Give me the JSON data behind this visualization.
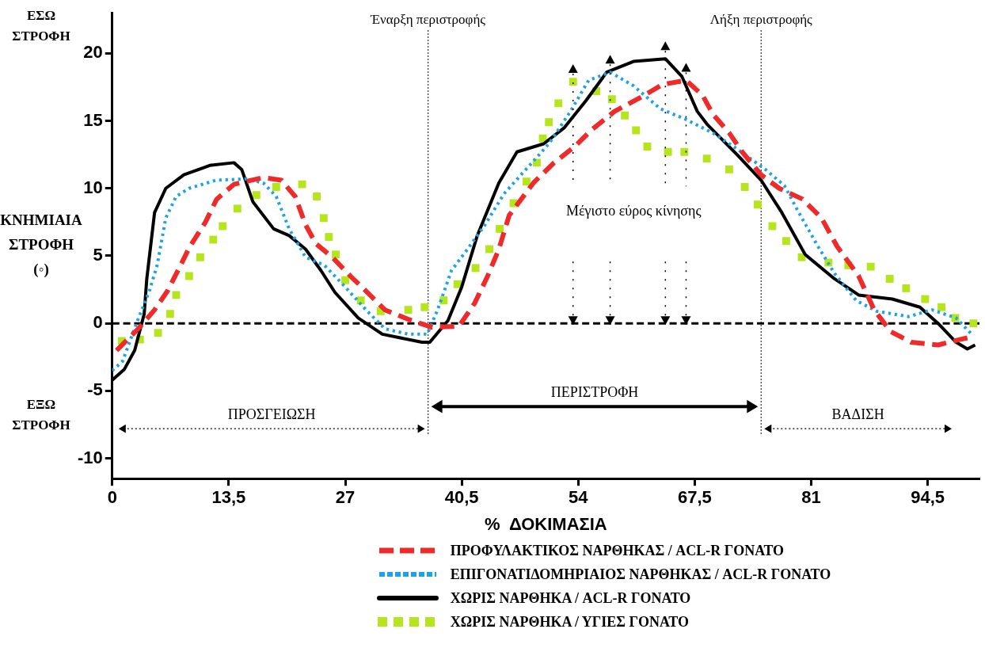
{
  "chart_data": {
    "type": "line",
    "xlabel": "%  ΔΟΚΙΜΑΣΙΑ",
    "ylabel": "ΚΝΗΜΙΑΙΑ ΣΤΡΟΦΗ (◦)",
    "xlim": [
      0,
      100.5
    ],
    "ylim": [
      -11.5,
      23
    ],
    "xticks": [
      0,
      {
        "value": 13.5,
        "label": "13,5"
      },
      27,
      {
        "value": 40.5,
        "label": "40,5"
      },
      54,
      {
        "value": 67.5,
        "label": "67,5"
      },
      81,
      {
        "value": 94.5,
        "label": "94,5"
      }
    ],
    "yticks": [
      -10,
      -5,
      0,
      5,
      10,
      15,
      20
    ],
    "legend": "bottom",
    "series": [
      {
        "name": "ΠΡΟΦΥΛΑΚΤΙΚΟΣ ΝΑΡΘΗΚΑΣ / ACL-R ΓΟΝΑΤΟ",
        "type": "line",
        "line_style": "dashed",
        "color": "#ee2a2a",
        "x": [
          0.5,
          3.0,
          4.9,
          6.4,
          7.6,
          9.0,
          10.8,
          12.1,
          14.1,
          17.5,
          19.6,
          21.2,
          22.4,
          23.6,
          25.5,
          27.6,
          29.4,
          31.6,
          34.3,
          37.1,
          40.2,
          42.0,
          43.5,
          44.8,
          46.0,
          48.8,
          51.2,
          53.6,
          55.5,
          58.2,
          61.4,
          63.8,
          66.5,
          68.4,
          69.6,
          71.5,
          73.0,
          75.2,
          77.3,
          80.0,
          82.2,
          84.0,
          86.5,
          88.3,
          90.2,
          92.6,
          95.7,
          98.2,
          99.6
        ],
        "values": [
          -2.0,
          -0.4,
          1.0,
          2.4,
          3.9,
          5.7,
          7.5,
          9.2,
          10.3,
          10.8,
          10.6,
          9.4,
          7.3,
          5.9,
          4.9,
          3.5,
          2.4,
          1.0,
          0.3,
          -0.3,
          -0.2,
          1.5,
          3.5,
          5.5,
          8.0,
          10.4,
          11.9,
          13.1,
          14.3,
          15.7,
          16.8,
          17.7,
          18.0,
          16.9,
          15.5,
          14.1,
          12.7,
          11.0,
          10.0,
          9.2,
          7.8,
          5.7,
          3.5,
          1.0,
          -0.6,
          -1.4,
          -1.6,
          -1.2,
          -1.0
        ]
      },
      {
        "name": "ΕΠΙΓΟΝΑΤΙΔΟΜΗΡΙΑΙΟΣ ΝΑΡΘΗΚΑΣ / ACL-R ΓΟΝΑΤΟ",
        "type": "line",
        "line_style": "dotted",
        "color": "#1aa3e8",
        "x": [
          0,
          1.2,
          2.8,
          4.3,
          5.2,
          6.2,
          7.4,
          8.9,
          12.0,
          15.6,
          17.5,
          19.0,
          20.5,
          22.4,
          24.6,
          26.7,
          29.4,
          31.6,
          34.3,
          36.5,
          37.7,
          39.3,
          41.4,
          43.2,
          45.4,
          47.8,
          50.6,
          53.1,
          55.2,
          57.7,
          60.4,
          63.5,
          66.5,
          69.6,
          72.0,
          75.7,
          77.9,
          79.4,
          81.6,
          83.7,
          86.2,
          88.6,
          92.3,
          95.0,
          97.8,
          99.6
        ],
        "values": [
          -3.5,
          -2.8,
          0,
          2.4,
          4.3,
          7.8,
          9.4,
          10.0,
          10.6,
          10.7,
          10.4,
          9.4,
          7.0,
          4.9,
          4.3,
          2.9,
          1.0,
          -0.4,
          -0.8,
          -0.8,
          1.0,
          3.9,
          5.7,
          7.3,
          9.6,
          11.3,
          13.3,
          15.7,
          18.0,
          18.6,
          17.6,
          15.9,
          15.1,
          14.1,
          13.1,
          11.4,
          10.2,
          8.4,
          5.9,
          3.7,
          1.7,
          0.9,
          0.5,
          1.0,
          0.4,
          -0.8
        ]
      },
      {
        "name": "ΧΩΡΙΣ ΝΑΡΘΗΚΑ / ACL-R ΓΟΝΑΤΟ",
        "type": "line",
        "line_style": "solid",
        "color": "#000000",
        "x": [
          0,
          1.4,
          2.6,
          3.7,
          4.0,
          4.9,
          6.2,
          8.3,
          11.3,
          14.1,
          15.0,
          16.3,
          18.7,
          20.5,
          22.4,
          24.2,
          25.8,
          28.5,
          31.3,
          35.9,
          36.8,
          38.9,
          40.5,
          42.3,
          44.8,
          46.9,
          50.0,
          52.4,
          54.9,
          57.3,
          60.4,
          64.1,
          66.0,
          67.8,
          69.0,
          72.4,
          75.2,
          77.6,
          80.3,
          83.7,
          86.5,
          90.4,
          93.6,
          95.7,
          97.8,
          99.1,
          100
        ],
        "values": [
          -4.2,
          -3.4,
          -2.0,
          0.7,
          3.3,
          8.2,
          10.0,
          11.0,
          11.7,
          11.9,
          11.4,
          9.0,
          7.0,
          6.5,
          5.5,
          3.9,
          2.3,
          0.4,
          -0.8,
          -1.4,
          -1.4,
          0.2,
          2.7,
          6.5,
          10.4,
          12.7,
          13.3,
          14.5,
          16.5,
          18.6,
          19.4,
          19.6,
          18.3,
          15.7,
          14.7,
          12.5,
          10.6,
          8.2,
          5.1,
          3.3,
          2.1,
          1.8,
          1.2,
          0,
          -1.4,
          -1.9,
          -1.6
        ]
      },
      {
        "name": "ΧΩΡΙΣ ΝΑΡΘΗΚΑ / ΥΓΙΕΣ  ΓΟΝΑΤΟ",
        "type": "scatter",
        "marker": "square",
        "color": "#b5e61d",
        "x": [
          1.1,
          3.2,
          5.3,
          6.7,
          7.4,
          8.9,
          10.2,
          11.7,
          12.8,
          14.5,
          16.7,
          19.0,
          22.0,
          23.7,
          24.5,
          25.1,
          25.9,
          27.0,
          28.8,
          31.1,
          34.3,
          36.2,
          38.4,
          40.0,
          42.1,
          43.7,
          44.9,
          46.5,
          48.0,
          49.2,
          49.9,
          50.6,
          51.7,
          53.4,
          56.1,
          57.9,
          59.4,
          60.7,
          62.0,
          64.4,
          66.3,
          68.9,
          71.5,
          73.3,
          74.8,
          76.5,
          78.1,
          79.9,
          83.0,
          85.3,
          87.9,
          90.1,
          92.0,
          94.2,
          96.1,
          97.7,
          99.8
        ],
        "values": [
          -1.3,
          -1.2,
          -0.7,
          0.7,
          2.1,
          3.5,
          4.9,
          6.2,
          7.2,
          8.5,
          9.5,
          10.1,
          10.3,
          9.4,
          7.8,
          6.4,
          5.1,
          3.2,
          1.7,
          0.9,
          1.0,
          1.2,
          1.7,
          2.9,
          4.1,
          5.5,
          7.0,
          8.9,
          10.5,
          11.9,
          13.7,
          14.9,
          16.3,
          17.9,
          17.2,
          16.6,
          15.4,
          14.3,
          13.1,
          12.7,
          12.7,
          12.2,
          11.4,
          10.1,
          8.8,
          7.2,
          6.1,
          4.9,
          4.5,
          4.3,
          4.2,
          3.3,
          2.6,
          1.8,
          1.2,
          0.4,
          0
        ]
      }
    ],
    "ref_lines": [
      {
        "axis": "y",
        "value": 0,
        "line_style": "dashed",
        "color": "#000000"
      },
      {
        "axis": "x",
        "value": 36.6,
        "label": "Έναρξη περιστροφής",
        "line_style": "dotted",
        "color": "#000000"
      },
      {
        "axis": "x",
        "value": 75.2,
        "label": "Λήξη περιστροφής",
        "line_style": "dotted",
        "color": "#000000"
      }
    ],
    "annotations": [
      "ΕΣΩ ΣΤΡΟΦΗ",
      "ΕΞΩ ΣΤΡΟΦΗ",
      "ΠΡΟΣΓΕΙΩΣΗ",
      "ΠΕΡΙΣΤΡΟΦΗ",
      "ΒΑΔΙΣΗ",
      "Μέγιστο εύρος κίνησης"
    ]
  }
}
